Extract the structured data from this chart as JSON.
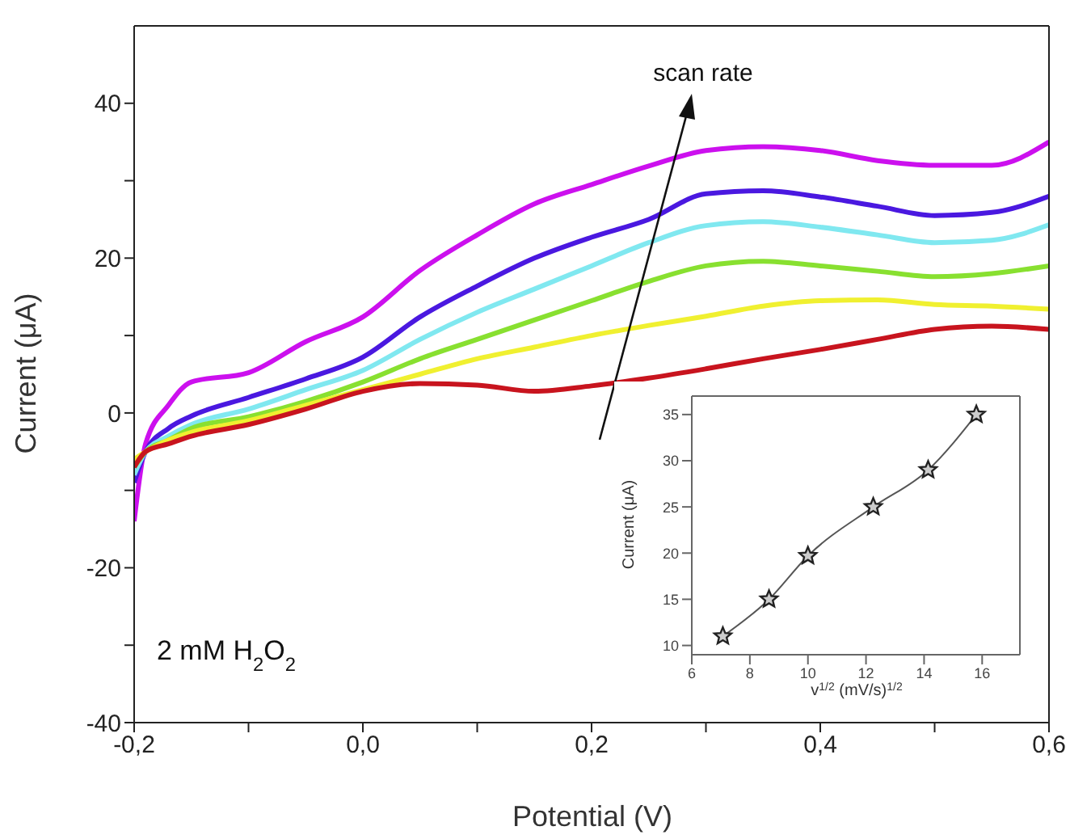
{
  "chart_data": [
    {
      "type": "line",
      "xlabel": "Potential (V)",
      "ylabel": "Current (μA)",
      "annotations": [
        "scan rate",
        "2 mM H$_{2}$O$_{2}$"
      ],
      "x": [
        -0.2,
        -0.19,
        -0.17,
        -0.15,
        -0.1,
        -0.05,
        0,
        0.05,
        0.1,
        0.15,
        0.2,
        0.25,
        0.3,
        0.35,
        0.4,
        0.45,
        0.5,
        0.55,
        0.6
      ],
      "series": [
        {
          "color": "#cc10ee",
          "values": [
            -14,
            -4,
            1,
            4,
            5.2,
            9.2,
            12.4,
            18.4,
            23,
            27,
            29.5,
            31.9,
            33.9,
            34.4,
            33.9,
            32.6,
            32,
            32,
            35
          ]
        },
        {
          "color": "#4a18e0",
          "values": [
            -9,
            -5,
            -2,
            -0.4,
            2,
            4.4,
            7.2,
            12.4,
            16.4,
            20,
            22.7,
            25,
            28.3,
            28.7,
            27.9,
            26.7,
            25.5,
            25.9,
            28
          ]
        },
        {
          "color": "#80e8f0",
          "values": [
            -8,
            -5,
            -3,
            -1.5,
            0.5,
            3,
            5.5,
            9.5,
            13,
            16,
            19,
            22,
            24.2,
            24.7,
            24,
            23,
            22,
            22.3,
            24.3
          ]
        },
        {
          "color": "#88e030",
          "values": [
            -7,
            -5,
            -3.5,
            -2,
            -0.5,
            1.5,
            4,
            7,
            9.5,
            12,
            14.5,
            17,
            19,
            19.6,
            19,
            18.3,
            17.6,
            18,
            19
          ]
        },
        {
          "color": "#f0f030",
          "values": [
            -6,
            -5,
            -3.5,
            -2.5,
            -1,
            1,
            3,
            5,
            7,
            8.5,
            10,
            11.3,
            12.5,
            13.8,
            14.5,
            14.6,
            14,
            13.8,
            13.4
          ]
        },
        {
          "color": "#c8141e",
          "values": [
            -7,
            -5,
            -4,
            -3,
            -1.5,
            0.5,
            2.8,
            3.8,
            3.6,
            2.8,
            3.5,
            4.5,
            5.7,
            7,
            8.2,
            9.5,
            10.8,
            11.2,
            10.8
          ]
        }
      ],
      "xlim": [
        -0.2,
        0.6
      ],
      "xticks": [
        {
          "value": -0.2,
          "label": "-0,2"
        },
        {
          "value": -0.1,
          "label": null
        },
        {
          "value": 0,
          "label": "0,0"
        },
        {
          "value": 0.1,
          "label": null
        },
        {
          "value": 0.2,
          "label": "0,2"
        },
        {
          "value": 0.3,
          "label": null
        },
        {
          "value": 0.4,
          "label": "0,4"
        },
        {
          "value": 0.5,
          "label": null
        },
        {
          "value": 0.6,
          "label": "0,6"
        }
      ],
      "ylim": [
        -40,
        50
      ],
      "yticks": [
        -40,
        {
          "value": -30,
          "label": null
        },
        -20,
        {
          "value": -10,
          "label": null
        },
        0,
        {
          "value": 10,
          "label": null
        },
        20,
        {
          "value": 30,
          "label": null
        },
        40
      ],
      "marker": "none",
      "line_style": "solid",
      "grid": false,
      "legend": false
    },
    {
      "type": "line",
      "xlabel": "v$^{1/2}$ (mV/s)$^{1/2}$",
      "ylabel": "Current (μA)",
      "x": [
        7.07,
        8.66,
        10,
        12.25,
        14.14,
        15.8
      ],
      "series": [
        {
          "color": "#555555",
          "values": [
            11,
            15,
            19.7,
            25,
            29,
            35
          ]
        }
      ],
      "xlim": [
        6,
        17.3
      ],
      "xticks": [
        6,
        8,
        10,
        12,
        14,
        16
      ],
      "ylim": [
        9,
        37
      ],
      "yticks": [
        10,
        15,
        20,
        25,
        30,
        35
      ],
      "marker": "star",
      "line_style": "solid",
      "grid": false,
      "legend": false
    }
  ]
}
